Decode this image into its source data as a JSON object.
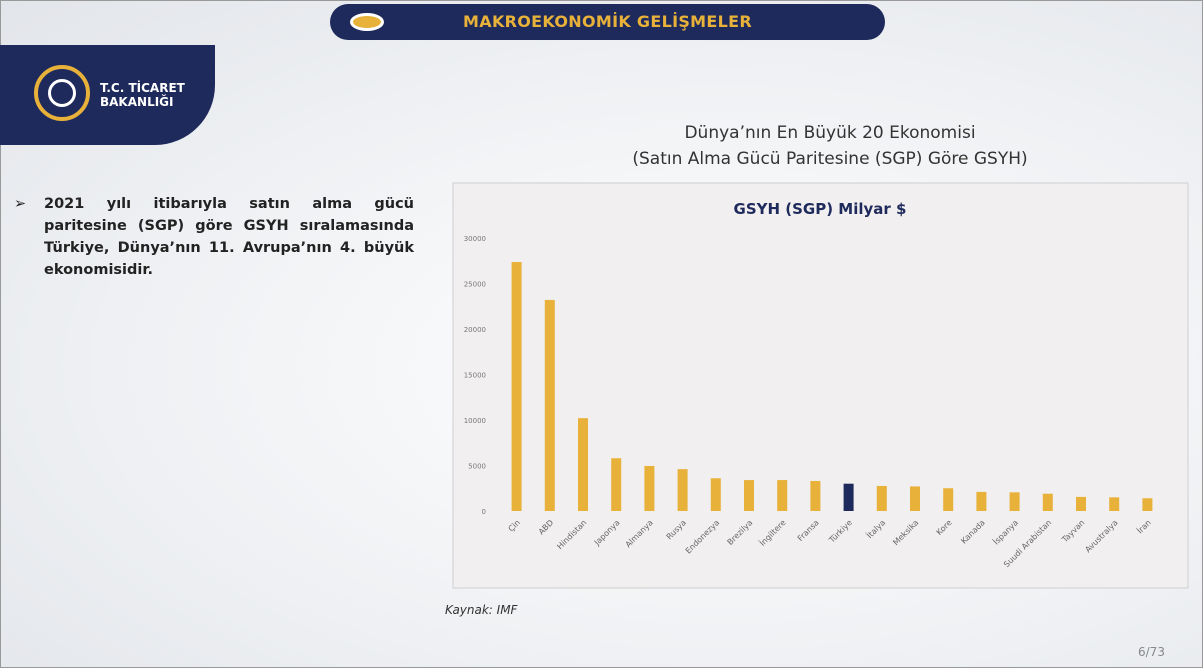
{
  "header": {
    "title": "MAKROEKONOMİK GELİŞMELER",
    "logo": "T.C. TİCARET BAKANLIĞI"
  },
  "bullet": "2021 yılı itibarıyla satın alma gücü paritesine (SGP) göre GSYH sıralamasında Türkiye, Dünya’nın 11. Avrupa’nın 4. büyük ekonomisidir.",
  "chart_heading": [
    "Dünya’nın En Büyük 20 Ekonomisi",
    "(Satın Alma Gücü Paritesine (SGP) Göre GSYH)"
  ],
  "chart_data": {
    "type": "bar",
    "title": "GSYH (SGP) Milyar $",
    "categories": [
      "Çin",
      "ABD",
      "Hindistan",
      "Japonya",
      "Almanya",
      "Rusya",
      "Endonezya",
      "Brezilya",
      "İngiltere",
      "Fransa",
      "Türkiye",
      "İtalya",
      "Meksika",
      "Kore",
      "Kanada",
      "İspanya",
      "Suudi Arabistan",
      "Tayvan",
      "Avustralya",
      "İran"
    ],
    "values": [
      27360,
      23190,
      10200,
      5800,
      4950,
      4600,
      3600,
      3400,
      3400,
      3300,
      3000,
      2750,
      2700,
      2500,
      2100,
      2050,
      1900,
      1550,
      1500,
      1400
    ],
    "colors": [
      "#e8b23a",
      "#e8b23a",
      "#e8b23a",
      "#e8b23a",
      "#e8b23a",
      "#e8b23a",
      "#e8b23a",
      "#e8b23a",
      "#e8b23a",
      "#e8b23a",
      "#1f2a5c",
      "#e8b23a",
      "#e8b23a",
      "#e8b23a",
      "#e8b23a",
      "#e8b23a",
      "#e8b23a",
      "#e8b23a",
      "#e8b23a",
      "#e8b23a"
    ],
    "ylim": [
      0,
      30000
    ],
    "yticks": [
      0,
      5000,
      10000,
      15000,
      20000,
      25000,
      30000
    ],
    "grid": false
  },
  "source": "Kaynak: IMF",
  "page": "6/73"
}
